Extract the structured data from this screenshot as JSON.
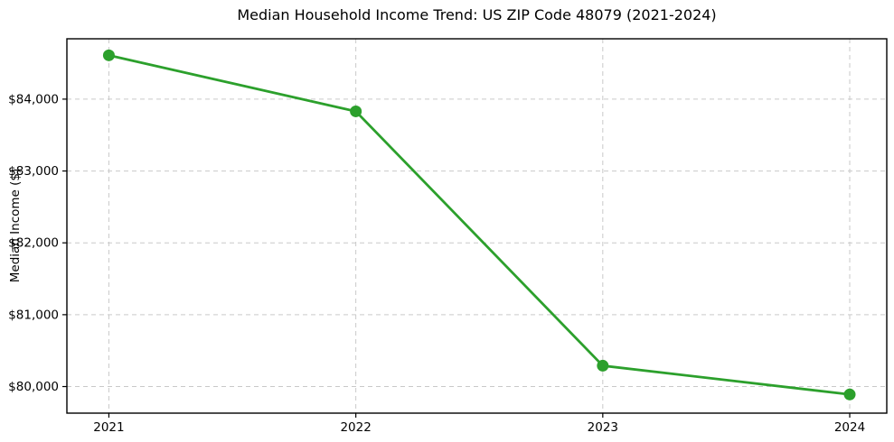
{
  "chart_data": {
    "type": "line",
    "title": "Median Household Income Trend: US ZIP Code 48079 (2021-2024)",
    "xlabel": "",
    "ylabel": "Median Income ($)",
    "x": [
      2021,
      2022,
      2023,
      2024
    ],
    "series": [
      {
        "name": "Median household income",
        "values": [
          84610,
          83830,
          80290,
          79890
        ]
      }
    ],
    "xticks": [
      2021,
      2022,
      2023,
      2024
    ],
    "xtick_labels": [
      "2021",
      "2022",
      "2023",
      "2024"
    ],
    "yticks": [
      80000,
      81000,
      82000,
      83000,
      84000
    ],
    "ytick_labels": [
      "$80,000",
      "$81,000",
      "$82,000",
      "$83,000",
      "$84,000"
    ],
    "xlim": [
      2020.83,
      2024.15
    ],
    "ylim": [
      79630,
      84840
    ],
    "grid": true,
    "legend": "none",
    "marker": "circle",
    "colors": {
      "line": "#2ca02c",
      "marker": "#2ca02c",
      "grid": "#c9c9c9",
      "spine": "#000000",
      "text": "#000000",
      "background": "#ffffff"
    }
  }
}
